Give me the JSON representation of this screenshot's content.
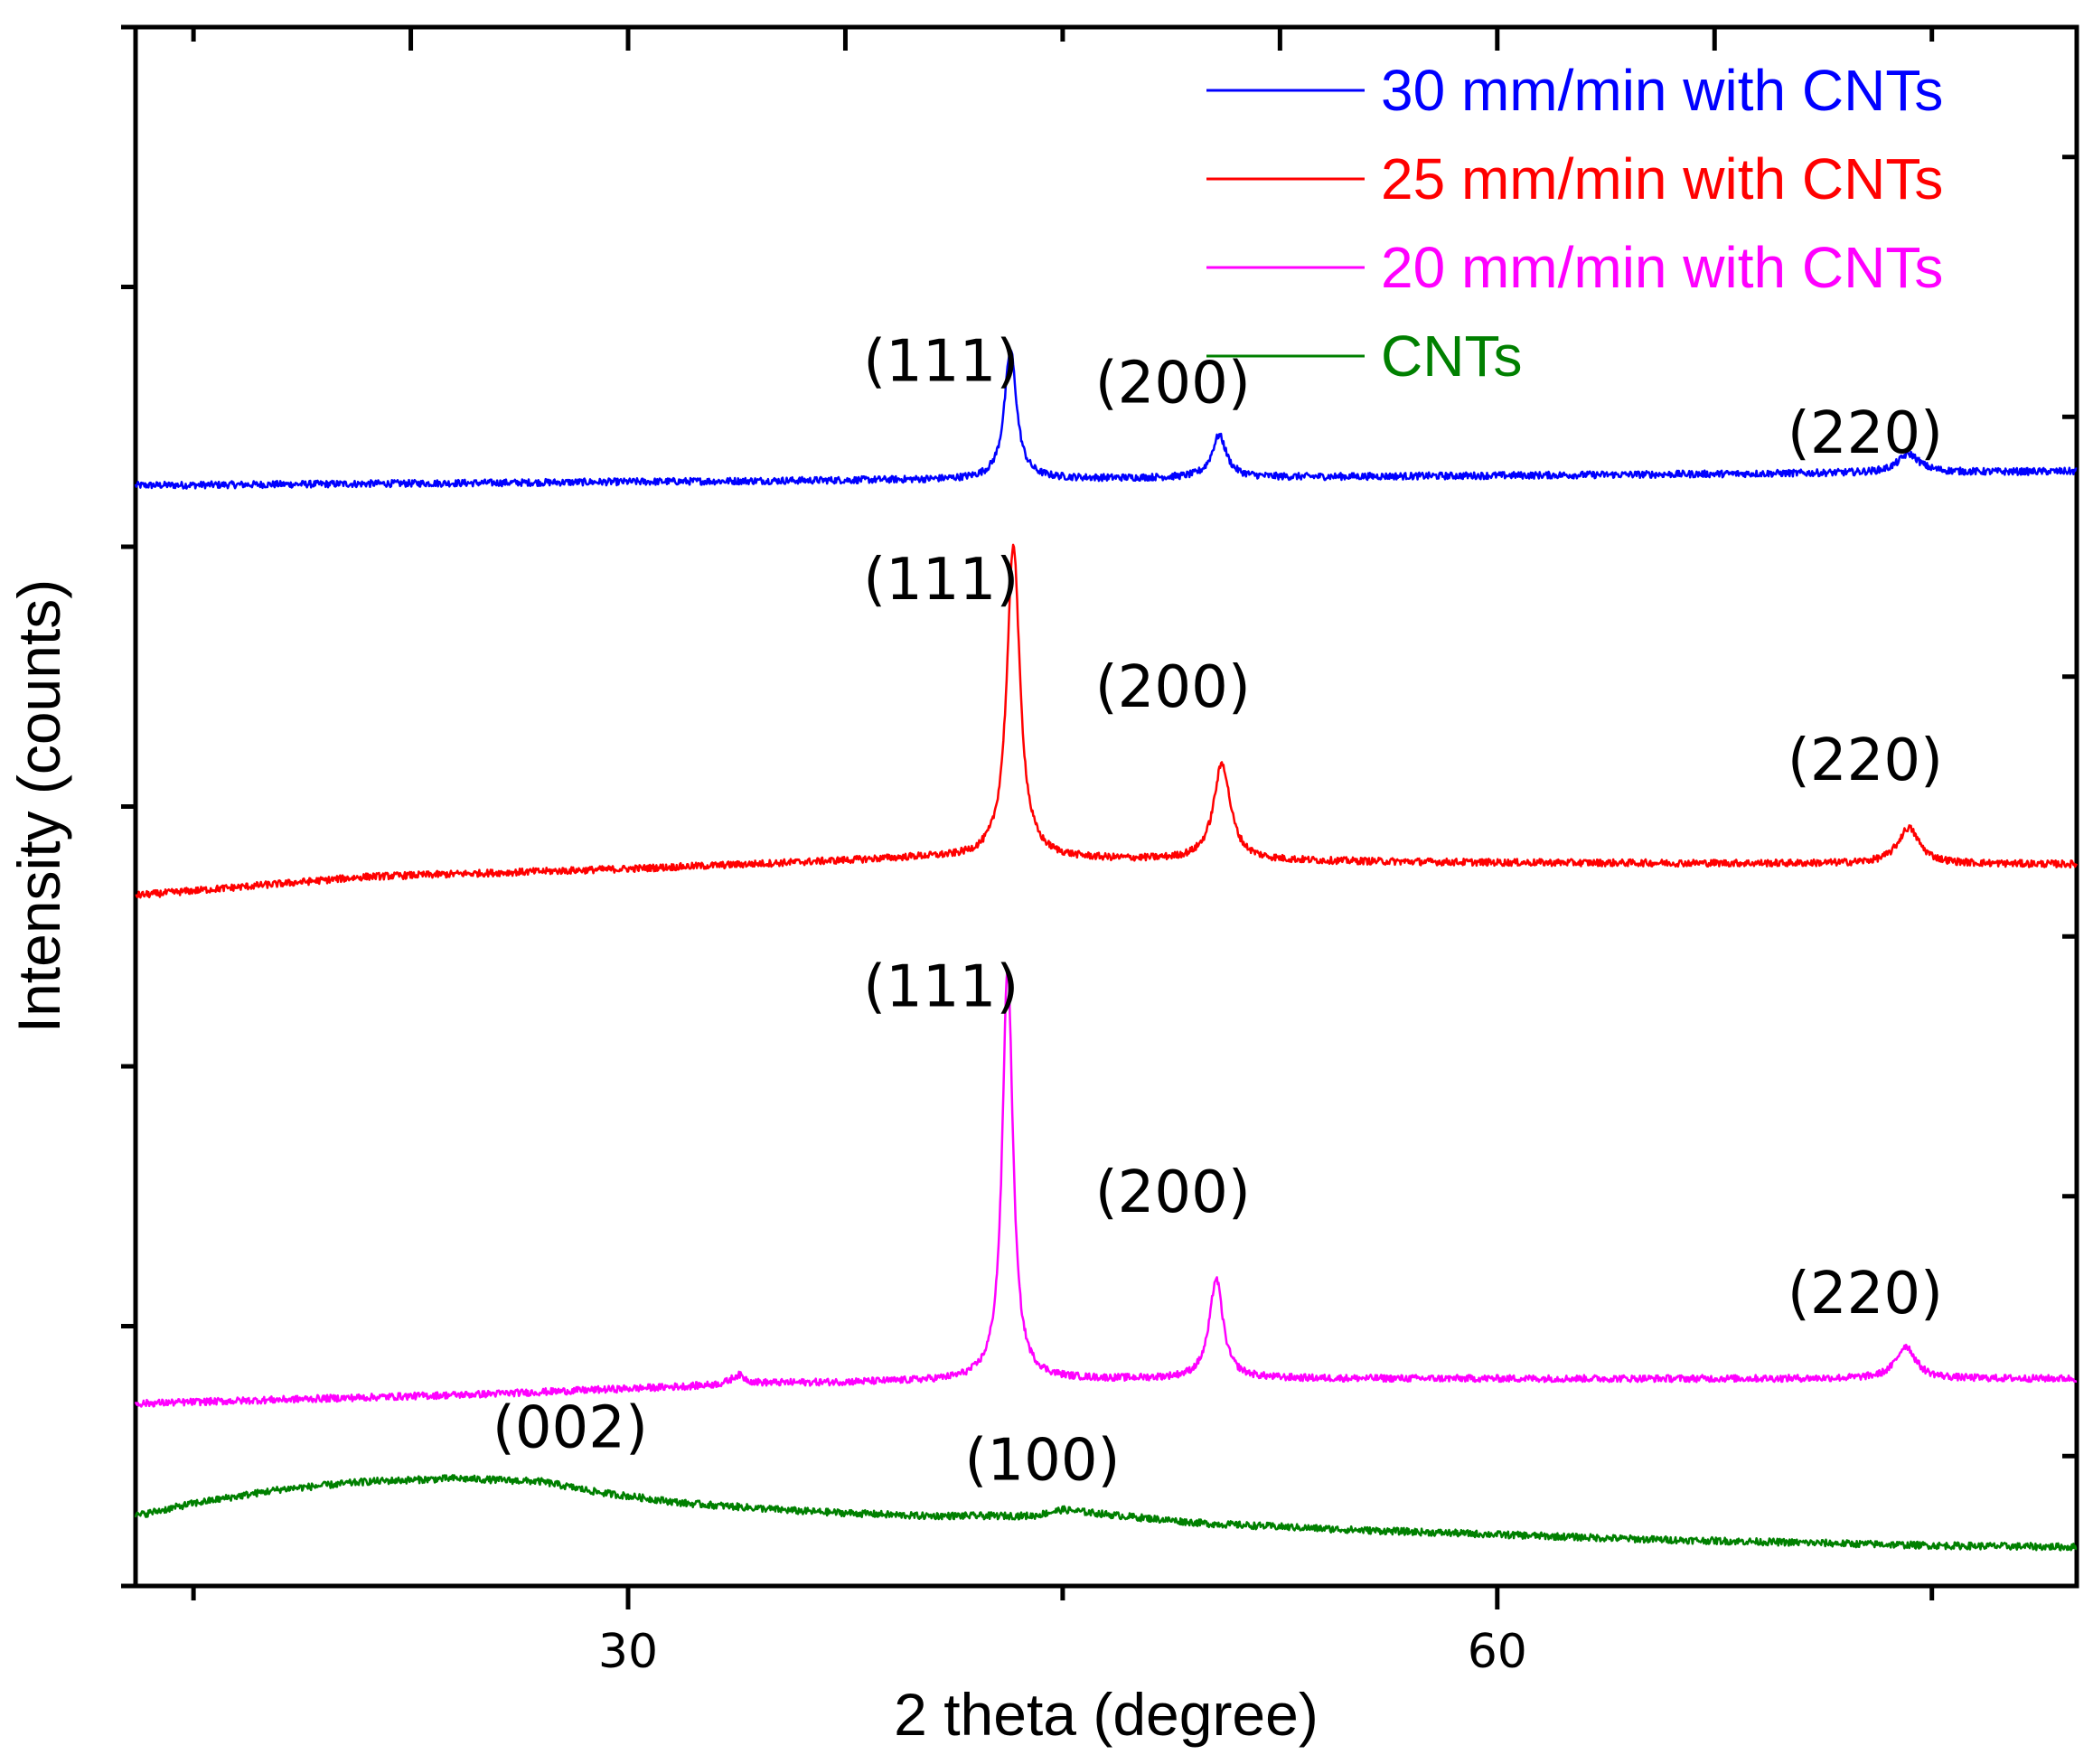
{
  "chart_data": {
    "type": "line",
    "xlabel": "2 theta (degree)",
    "ylabel": "Intensity (counts)",
    "xlim": [
      13,
      80
    ],
    "ylim": [
      0,
      100
    ],
    "x_ticks_major": [
      30,
      60
    ],
    "x_tick_labels": [
      "30",
      "60"
    ],
    "x_ticks_minor": [
      15,
      45,
      75
    ],
    "grid": false,
    "legend_position": "top-right",
    "series": [
      {
        "name": "30 mm/min with CNTs",
        "color": "#0000ff",
        "baseline": [
          [
            13,
            70.6
          ],
          [
            80,
            71.5
          ]
        ],
        "peaks": [
          {
            "x": 43.2,
            "height": 8.3,
            "width": 0.25
          },
          {
            "x": 50.4,
            "height": 2.7,
            "width": 0.3
          },
          {
            "x": 74.2,
            "height": 1.2,
            "width": 0.45
          }
        ]
      },
      {
        "name": "25 mm/min with CNTs",
        "color": "#ff0000",
        "baseline": [
          [
            13,
            44.3
          ],
          [
            21,
            45.5
          ],
          [
            30,
            46.0
          ],
          [
            40,
            46.7
          ],
          [
            46,
            46.6
          ],
          [
            60,
            46.4
          ],
          [
            80,
            46.3
          ]
        ],
        "peaks": [
          {
            "x": 43.3,
            "height": 20.2,
            "width": 0.27
          },
          {
            "x": 50.5,
            "height": 6.2,
            "width": 0.35
          },
          {
            "x": 74.2,
            "height": 2.3,
            "width": 0.45
          }
        ]
      },
      {
        "name": "20 mm/min with CNTs",
        "color": "#ff00ff",
        "baseline": [
          [
            13,
            11.7
          ],
          [
            25,
            12.3
          ],
          [
            35,
            13.0
          ],
          [
            43,
            13.2
          ],
          [
            50,
            13.3
          ],
          [
            80,
            13.3
          ]
        ],
        "peaks": [
          {
            "x": 33.8,
            "height": 0.6,
            "width": 0.3
          },
          {
            "x": 43.1,
            "height": 26.5,
            "width": 0.22
          },
          {
            "x": 50.3,
            "height": 6.4,
            "width": 0.28
          },
          {
            "x": 74.1,
            "height": 2.1,
            "width": 0.4
          }
        ]
      },
      {
        "name": "CNTs",
        "color": "#008000",
        "baseline": [
          [
            13,
            4.5
          ],
          [
            15,
            5.3
          ],
          [
            18,
            6.2
          ],
          [
            21,
            6.7
          ],
          [
            24,
            6.9
          ],
          [
            27,
            6.7
          ],
          [
            29,
            6.0
          ],
          [
            32,
            5.3
          ],
          [
            36,
            4.8
          ],
          [
            40,
            4.5
          ],
          [
            44,
            4.5
          ],
          [
            45,
            4.9
          ],
          [
            47,
            4.5
          ],
          [
            50,
            4.0
          ],
          [
            55,
            3.6
          ],
          [
            60,
            3.3
          ],
          [
            65,
            3.0
          ],
          [
            70,
            2.8
          ],
          [
            75,
            2.6
          ],
          [
            80,
            2.5
          ]
        ],
        "peaks": []
      }
    ],
    "annotations": [
      {
        "text": "(111)",
        "x": 40.8,
        "y": 77.3
      },
      {
        "text": "(200)",
        "x": 48.8,
        "y": 75.9
      },
      {
        "text": "(220)",
        "x": 72.7,
        "y": 72.7
      },
      {
        "text": "(111)",
        "x": 40.8,
        "y": 63.3
      },
      {
        "text": "(200)",
        "x": 48.8,
        "y": 56.4
      },
      {
        "text": "(220)",
        "x": 72.7,
        "y": 51.7
      },
      {
        "text": "(111)",
        "x": 40.8,
        "y": 37.2
      },
      {
        "text": "(200)",
        "x": 48.8,
        "y": 24.0
      },
      {
        "text": "(220)",
        "x": 72.7,
        "y": 17.5
      },
      {
        "text": "(002)",
        "x": 28.0,
        "y": 8.9
      },
      {
        "text": "(100)",
        "x": 44.3,
        "y": 6.8
      }
    ]
  }
}
